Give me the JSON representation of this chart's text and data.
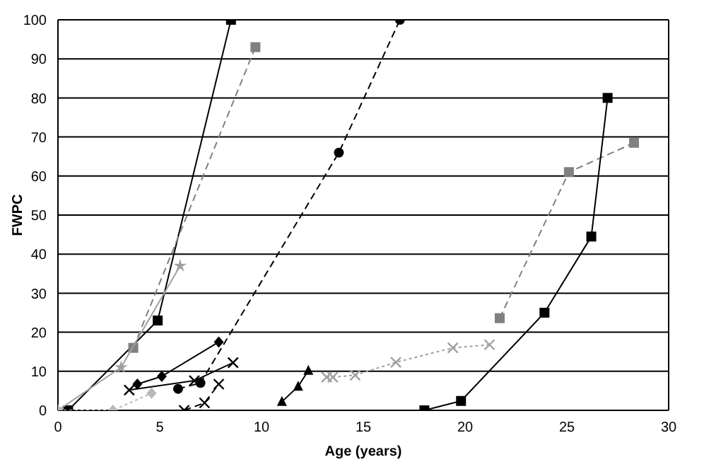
{
  "chart_data": {
    "type": "line",
    "xlabel": "Age (years)",
    "ylabel": "FWPC",
    "xlim": [
      0,
      30
    ],
    "xticks": [
      0,
      5,
      10,
      15,
      20,
      25,
      30
    ],
    "ylim": [
      0,
      100
    ],
    "yticks": [
      0,
      10,
      20,
      30,
      40,
      50,
      60,
      70,
      80,
      90,
      100
    ],
    "grid": "y",
    "legend": false,
    "series": [
      {
        "color": "#000000",
        "marker": "square",
        "line_style": "solid",
        "x": [
          0.5,
          4.9,
          8.5
        ],
        "values": [
          0,
          23,
          100
        ]
      },
      {
        "color": "#808080",
        "marker": "square",
        "line_style": "dashed",
        "x": [
          3.7,
          9.7
        ],
        "values": [
          16,
          93
        ]
      },
      {
        "color": "#a0a0a0",
        "marker": "star",
        "line_style": "solid",
        "x": [
          0,
          3.1,
          6.0
        ],
        "values": [
          0,
          11,
          37
        ]
      },
      {
        "color": "#000000",
        "marker": "circle",
        "line_style": "dashed",
        "x": [
          5.9,
          7.0,
          13.8,
          16.8
        ],
        "values": [
          5.5,
          7,
          66,
          100
        ]
      },
      {
        "color": "#000000",
        "marker": "diamond",
        "line_style": "solid",
        "x": [
          3.9,
          5.1,
          7.9
        ],
        "values": [
          6.7,
          8.7,
          17.5
        ]
      },
      {
        "color": "#000000",
        "marker": "cross",
        "line_style": "solid",
        "x": [
          3.5,
          6.7,
          8.6
        ],
        "values": [
          5.2,
          7.6,
          12.2
        ]
      },
      {
        "color": "#b8b8b8",
        "marker": "diamond",
        "line_style": "dotted",
        "x": [
          0,
          2.7,
          4.6
        ],
        "values": [
          0,
          0,
          4.4
        ]
      },
      {
        "color": "#000000",
        "marker": "cross",
        "line_style": "dashed",
        "x": [
          6.2,
          7.2,
          7.9
        ],
        "values": [
          0,
          1.9,
          6.7
        ]
      },
      {
        "color": "#000000",
        "marker": "triangle",
        "line_style": "solid",
        "x": [
          11.0,
          11.8,
          12.3
        ],
        "values": [
          2.2,
          6.1,
          10.2
        ]
      },
      {
        "color": "#a0a0a0",
        "marker": "cross",
        "line_style": "dotted",
        "x": [
          13.2,
          13.5,
          14.6,
          16.6,
          19.4,
          21.2
        ],
        "values": [
          8.5,
          8.5,
          9,
          12.3,
          16,
          16.8
        ]
      },
      {
        "color": "#808080",
        "marker": "square",
        "line_style": "dashed",
        "x": [
          21.7,
          25.1,
          28.3
        ],
        "values": [
          23.6,
          61,
          68.5
        ]
      },
      {
        "color": "#000000",
        "marker": "square",
        "line_style": "solid",
        "x": [
          18.0,
          19.8,
          23.9,
          26.2,
          27.0
        ],
        "values": [
          0,
          2.4,
          25,
          44.5,
          80
        ]
      }
    ]
  }
}
